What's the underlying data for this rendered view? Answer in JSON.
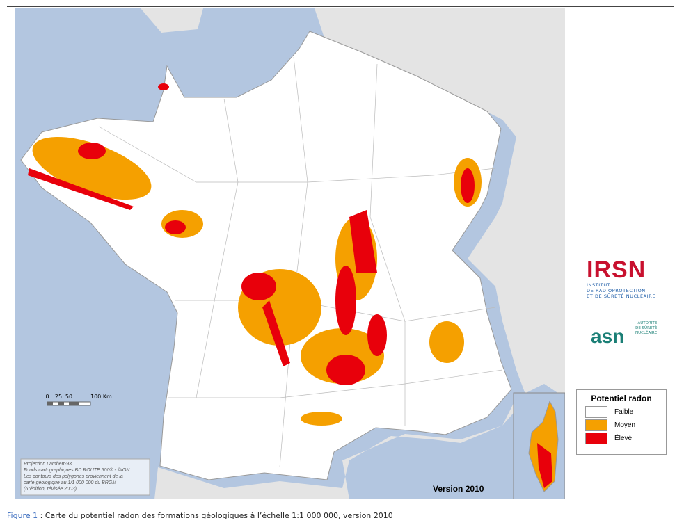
{
  "map": {
    "scale_bar": {
      "labels": [
        "0",
        "25",
        "50",
        "100 Km"
      ]
    },
    "source_note": [
      "Projection Lambert-93",
      "Fonds cartographiques BD ROUTE 500® - ©IGN",
      "Les contours des polygones proviennent de la",
      "carte géologique au 1/1 000 000 du BRGM",
      "(6°édition, révisée 2003)"
    ],
    "version": "Version 2010"
  },
  "logos": {
    "irsn": {
      "name": "IRSN",
      "lines": [
        "INSTITUT",
        "DE RADIOPROTECTION",
        "ET DE SÛRETÉ NUCLÉAIRE"
      ]
    },
    "asn": {
      "name": "asn",
      "lines": [
        "AUTORITÉ",
        "DE SÛRETÉ",
        "NUCLÉAIRE"
      ]
    }
  },
  "legend": {
    "title": "Potentiel radon",
    "items": [
      {
        "label": "Faible",
        "color": "#ffffff"
      },
      {
        "label": "Moyen",
        "color": "#f5a000"
      },
      {
        "label": "Élevé",
        "color": "#e8000b"
      }
    ]
  },
  "caption": {
    "label": "Figure 1",
    "text": ": Carte du potentiel radon des formations géologiques à l’échelle 1:1 000 000, version 2010"
  }
}
